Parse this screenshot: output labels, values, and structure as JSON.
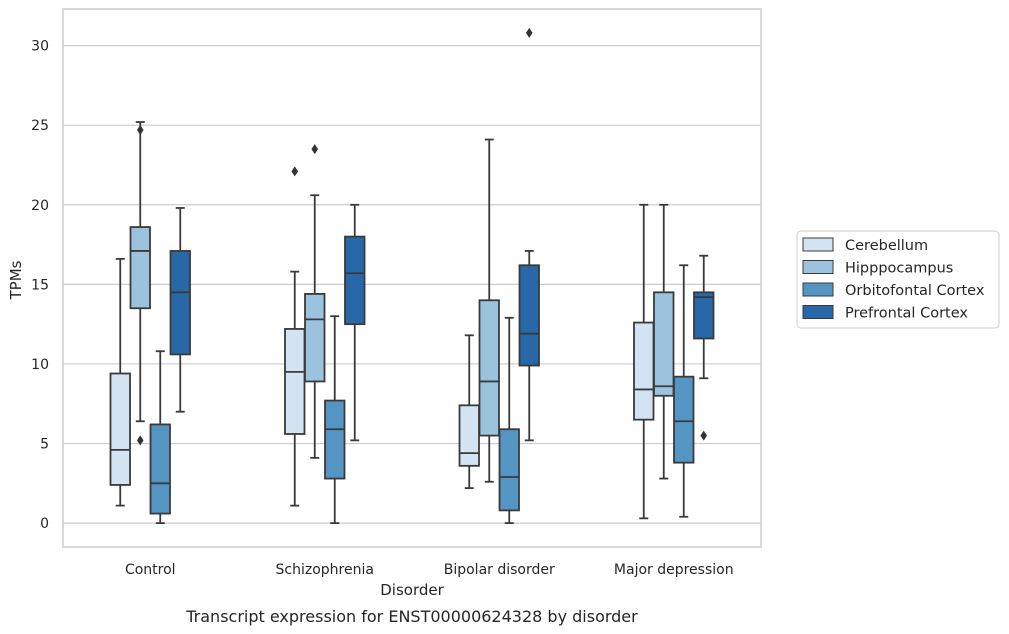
{
  "chart_data": {
    "type": "boxplot",
    "caption": "Transcript expression for ENST00000624328 by disorder",
    "xlabel": "Disorder",
    "ylabel": "TPMs",
    "ylim": [
      -1.5,
      32.3
    ],
    "yticks": [
      0,
      5,
      10,
      15,
      20,
      25,
      30
    ],
    "grid": "horizontal",
    "legend_position": "right",
    "categories": [
      "Control",
      "Schizophrenia",
      "Bipolar disorder",
      "Major depression"
    ],
    "series": [
      {
        "name": "Cerebellum",
        "color": "#d3e3f2",
        "boxes": [
          {
            "whislo": 1.1,
            "q1": 2.4,
            "med": 4.6,
            "q3": 9.4,
            "whishi": 16.6,
            "fliers": []
          },
          {
            "whislo": 1.1,
            "q1": 5.6,
            "med": 9.5,
            "q3": 12.2,
            "whishi": 15.8,
            "fliers": [
              22.1
            ]
          },
          {
            "whislo": 2.2,
            "q1": 3.6,
            "med": 4.4,
            "q3": 7.4,
            "whishi": 11.8,
            "fliers": []
          },
          {
            "whislo": 0.3,
            "q1": 6.5,
            "med": 8.4,
            "q3": 12.6,
            "whishi": 20.0,
            "fliers": []
          }
        ]
      },
      {
        "name": "Hipppocampus",
        "color": "#9cc3dd",
        "boxes": [
          {
            "whislo": 6.4,
            "q1": 13.5,
            "med": 17.1,
            "q3": 18.6,
            "whishi": 25.2,
            "fliers": [
              5.2,
              24.7
            ]
          },
          {
            "whislo": 4.1,
            "q1": 8.9,
            "med": 12.8,
            "q3": 14.4,
            "whishi": 20.6,
            "fliers": [
              23.5
            ]
          },
          {
            "whislo": 2.6,
            "q1": 5.5,
            "med": 8.9,
            "q3": 14.0,
            "whishi": 24.1,
            "fliers": []
          },
          {
            "whislo": 2.8,
            "q1": 8.0,
            "med": 8.6,
            "q3": 14.5,
            "whishi": 20.0,
            "fliers": []
          }
        ]
      },
      {
        "name": "Orbitofontal Cortex",
        "color": "#5595c4",
        "boxes": [
          {
            "whislo": 0.0,
            "q1": 0.6,
            "med": 2.5,
            "q3": 6.2,
            "whishi": 10.8,
            "fliers": []
          },
          {
            "whislo": 0.0,
            "q1": 2.8,
            "med": 5.9,
            "q3": 7.7,
            "whishi": 13.0,
            "fliers": []
          },
          {
            "whislo": 0.0,
            "q1": 0.8,
            "med": 2.9,
            "q3": 5.9,
            "whishi": 12.9,
            "fliers": []
          },
          {
            "whislo": 0.4,
            "q1": 3.8,
            "med": 6.4,
            "q3": 9.2,
            "whishi": 16.2,
            "fliers": []
          }
        ]
      },
      {
        "name": "Prefrontal Cortex",
        "color": "#2868a8",
        "boxes": [
          {
            "whislo": 7.0,
            "q1": 10.6,
            "med": 14.5,
            "q3": 17.1,
            "whishi": 19.8,
            "fliers": []
          },
          {
            "whislo": 5.2,
            "q1": 12.5,
            "med": 15.7,
            "q3": 18.0,
            "whishi": 20.0,
            "fliers": []
          },
          {
            "whislo": 5.2,
            "q1": 9.9,
            "med": 11.9,
            "q3": 16.2,
            "whishi": 17.1,
            "fliers": [
              30.8
            ]
          },
          {
            "whislo": 9.1,
            "q1": 11.6,
            "med": 14.2,
            "q3": 14.5,
            "whishi": 16.8,
            "fliers": [
              5.5
            ]
          }
        ]
      }
    ]
  }
}
